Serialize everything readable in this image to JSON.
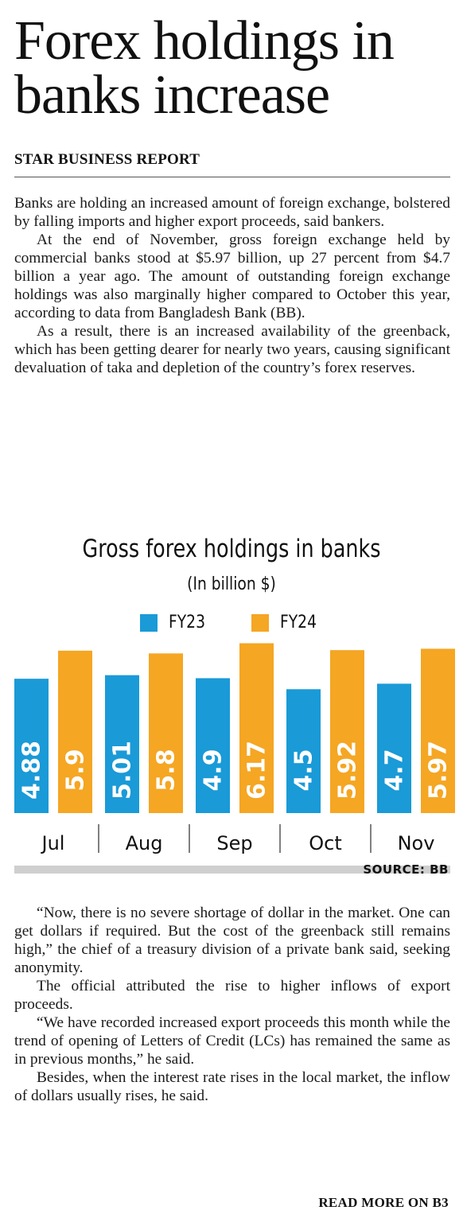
{
  "article": {
    "headline": "Forex holdings in banks increase",
    "byline": "STAR BUSINESS REPORT",
    "paragraphs_top": [
      "Banks are holding an increased amount of foreign exchange, bolstered by falling imports and higher export proceeds, said bankers.",
      "At the end of November, gross foreign exchange held by commercial banks stood at $5.97 billion, up 27 percent from $4.7 billion a year ago. The amount of outstanding foreign exchange holdings was also marginally higher compared to October this year, according to data from Bangladesh Bank (BB).",
      "As a result, there is an increased availability of the greenback, which has been getting dearer for nearly two years, causing significant devaluation of taka and depletion of the country’s forex reserves."
    ],
    "paragraphs_bottom": [
      "“Now, there is no severe shortage of dollar in the market. One can get dollars if required. But the cost of the greenback still remains high,” the chief of a treasury division of a private bank said, seeking anonymity.",
      "The official attributed the rise to higher inflows of export proceeds.",
      "“We have recorded increased export proceeds this month while the trend of opening of Letters of Credit (LCs) has remained the same as in previous months,” he said.",
      "Besides, when the interest rate rises in the local market, the inflow of dollars usually rises, he said."
    ],
    "read_more": "READ MORE ON B3"
  },
  "chart_data": {
    "type": "bar",
    "title": "Gross forex holdings in banks",
    "subtitle": "(In billion $)",
    "categories": [
      "Jul",
      "Aug",
      "Sep",
      "Oct",
      "Nov"
    ],
    "series": [
      {
        "name": "FY23",
        "color": "#1a9ad7",
        "values": [
          4.88,
          5.01,
          4.9,
          4.5,
          4.7
        ],
        "labels": [
          "4.88",
          "5.01",
          "4.9",
          "4.5",
          "4.7"
        ]
      },
      {
        "name": "FY24",
        "color": "#f5a623",
        "values": [
          5.9,
          5.8,
          6.17,
          5.92,
          5.97
        ],
        "labels": [
          "5.9",
          "5.8",
          "6.17",
          "5.92",
          "5.97"
        ]
      }
    ],
    "source": "SOURCE: BB",
    "grid": false,
    "legend": "top-center"
  }
}
